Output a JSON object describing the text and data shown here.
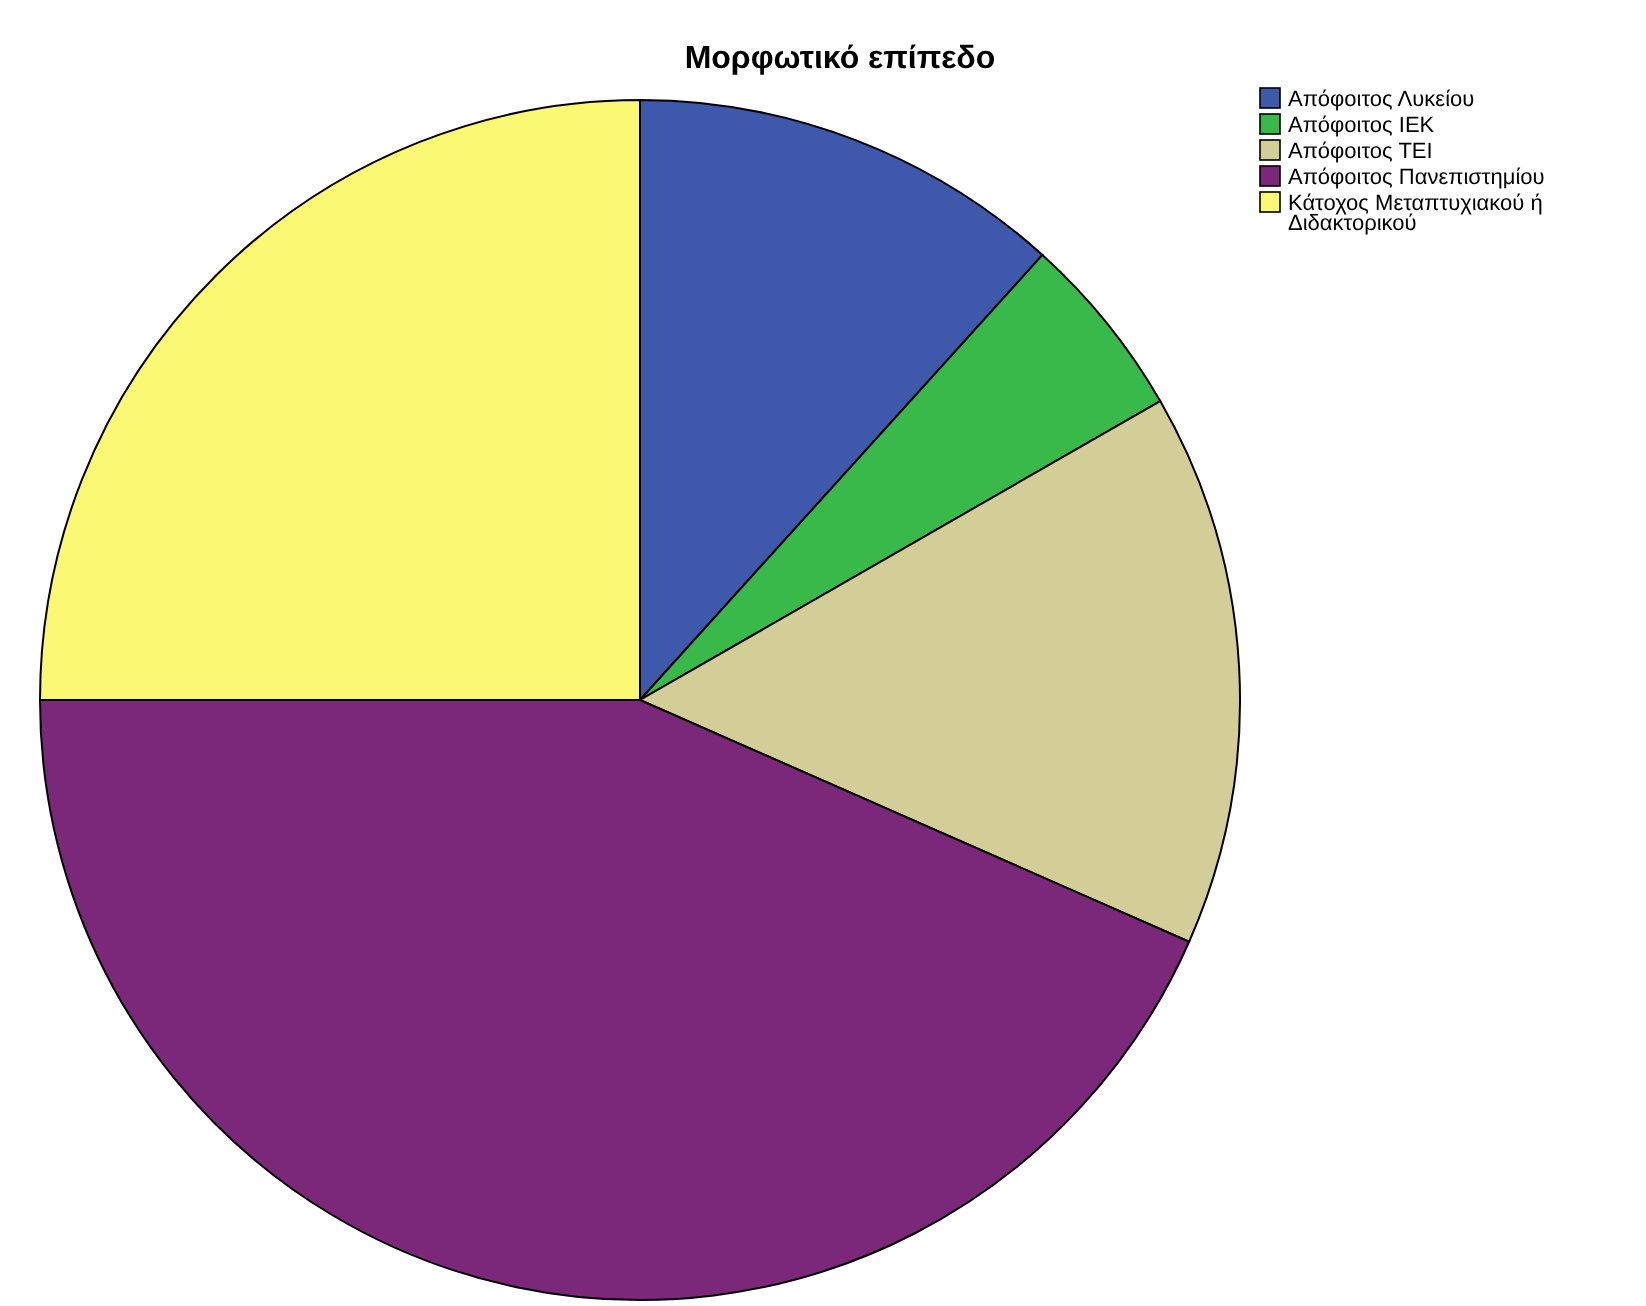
{
  "chart_data": {
    "type": "pie",
    "title": "Μορφωτικό επίπεδο",
    "categories": [
      "Απόφοιτος Λυκείου",
      "Απόφοιτος ΙΕΚ",
      "Απόφοιτος ΤΕΙ",
      "Απόφοιτος Πανεπιστημίου",
      "Κάτοχος Μεταπτυχιακού ή Διδακτορικού"
    ],
    "values": [
      11.7,
      5,
      14.9,
      43.4,
      25
    ],
    "colors": [
      "#3e58ac",
      "#39b94a",
      "#d3ce97",
      "#7b287a",
      "#fbf873"
    ],
    "legend": "top right"
  }
}
